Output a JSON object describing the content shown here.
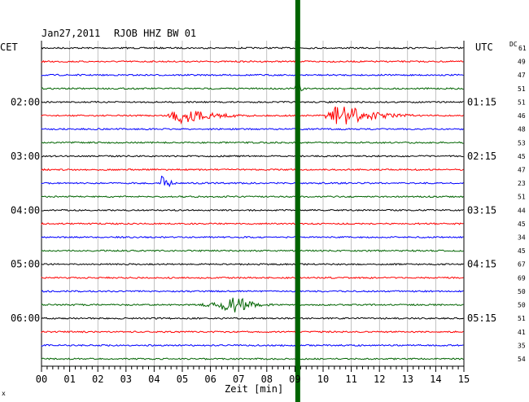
{
  "header": {
    "date": "Jan27,2011",
    "station": "RJOB HHZ BW 01",
    "left_tz": "CET",
    "right_tz": "UTC",
    "dc_label": "DC",
    "dc_sub": "61",
    "mark": "x"
  },
  "colors": {
    "background": "#ffffff",
    "grid": "#000000",
    "trace_cycle": [
      "#000000",
      "#ff0000",
      "#0000ff",
      "#006400"
    ],
    "event_band": "#006400"
  },
  "chart_data": {
    "type": "line",
    "title": "Jan27,2011  RJOB HHZ BW 01",
    "xlabel": "Zeit [min]",
    "ylabel": "",
    "xlim": [
      0,
      15
    ],
    "x_ticks": [
      "00",
      "01",
      "02",
      "03",
      "04",
      "05",
      "06",
      "07",
      "08",
      "09",
      "10",
      "11",
      "12",
      "13",
      "14",
      "15"
    ],
    "grid": true,
    "rows": 24,
    "row_minutes": 15,
    "left_time_labels": [
      {
        "row": 4,
        "text": "02:00"
      },
      {
        "row": 8,
        "text": "03:00"
      },
      {
        "row": 12,
        "text": "04:00"
      },
      {
        "row": 16,
        "text": "05:00"
      },
      {
        "row": 20,
        "text": "06:00"
      }
    ],
    "right_time_labels": [
      {
        "row": 4,
        "text": "01:15"
      },
      {
        "row": 8,
        "text": "02:15"
      },
      {
        "row": 12,
        "text": "03:15"
      },
      {
        "row": 16,
        "text": "04:15"
      },
      {
        "row": 20,
        "text": "05:15"
      }
    ],
    "dc_values": [
      "49",
      "47",
      "51",
      "51",
      "46",
      "48",
      "53",
      "45",
      "47",
      "23",
      "51",
      "44",
      "45",
      "34",
      "45",
      "67",
      "69",
      "50",
      "50",
      "51",
      "41",
      "35",
      "54"
    ],
    "events": [
      {
        "row": 5,
        "start_min": 4.4,
        "peak_min": 4.9,
        "end_min": 7.4,
        "amplitude": 0.9
      },
      {
        "row": 5,
        "start_min": 10.0,
        "peak_min": 10.6,
        "end_min": 13.2,
        "amplitude": 1.3
      },
      {
        "row": 10,
        "start_min": 4.2,
        "peak_min": 4.3,
        "end_min": 4.8,
        "amplitude": 1.1
      },
      {
        "row": 19,
        "start_min": 5.6,
        "peak_min": 7.0,
        "end_min": 8.2,
        "amplitude": 0.8
      },
      {
        "row": 3,
        "start_min": 9.0,
        "peak_min": 9.1,
        "end_min": 9.4,
        "amplitude": 1.0
      }
    ],
    "band_min": 9.1
  }
}
